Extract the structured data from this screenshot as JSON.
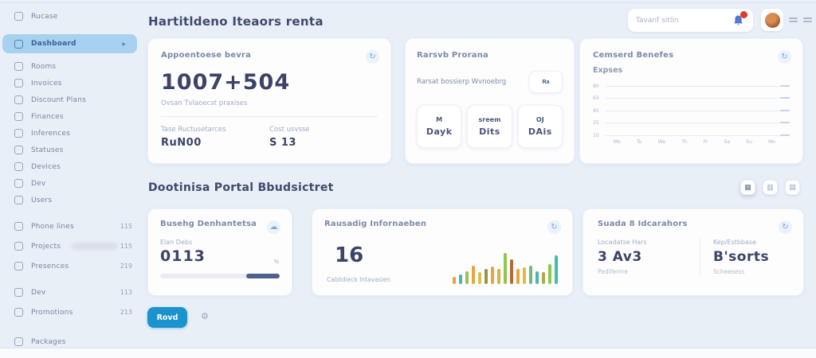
{
  "app": {
    "title": "Hartitldeno Iteaors renta"
  },
  "header": {
    "search": {
      "placeholder": "Tavanf sitlin"
    },
    "bell_color": "#4f79cc",
    "notification_dot_color": "#df3b2e"
  },
  "sidebar": {
    "items": [
      {
        "label": "Rucase",
        "active": false
      },
      {
        "label": "Dashboard",
        "active": true,
        "gap": 12
      },
      {
        "label": "Rooms",
        "active": false,
        "gap": 6
      },
      {
        "label": "Invoices",
        "active": false
      },
      {
        "label": "Discount Plans",
        "active": false
      },
      {
        "label": "Finances",
        "active": false
      },
      {
        "label": "Inferences",
        "active": false
      },
      {
        "label": "Statuses",
        "active": false
      },
      {
        "label": "Devices",
        "active": false
      },
      {
        "label": "Dev",
        "active": false
      },
      {
        "label": "Users",
        "active": false
      },
      {
        "label": "Phone lines",
        "badge": "115",
        "gap": 12
      },
      {
        "label": "Projects",
        "badge": "115",
        "blur_pill": true,
        "gap": 4
      },
      {
        "label": "Presences",
        "badge": "219",
        "gap": 4
      },
      {
        "label": "Dev",
        "badge": "113",
        "gap": 12
      },
      {
        "label": "Promotions",
        "badge": "213",
        "gap": 4
      },
      {
        "label": "Packages",
        "gap": 16
      }
    ]
  },
  "cards": {
    "stats": {
      "title": "Appoentoese bevra",
      "big_value": "1007+504",
      "subtitle": "Ovsan Tvlaoecst praxises",
      "metrics": [
        {
          "label": "Tase Ructusetarces",
          "value": "RuN00"
        },
        {
          "label": "Cost usvsse",
          "value": "S 13"
        }
      ]
    },
    "programs": {
      "title": "Rarsvb Prorana",
      "row_text": "Rarsat bossierp Wvnoebrg",
      "row_button_label": "Ra",
      "tiles": [
        {
          "top": "M",
          "bottom": "Dayk"
        },
        {
          "top": "sreem",
          "bottom": "Dits"
        },
        {
          "top": "OJ",
          "bottom": "DAis"
        }
      ]
    },
    "benefits": {
      "title": "Cemserd Benefes",
      "subtitle": "Expses",
      "chart_data": {
        "type": "line",
        "title": "Cemserd Benefes",
        "series": [],
        "note": "empty plot area - gridlines only, no data line visible",
        "y_ticks": [
          "80",
          "63",
          "45",
          "25",
          "10"
        ],
        "x_ticks": [
          "Mo",
          "Tu",
          "We",
          "Th",
          "Fr",
          "Sa",
          "Su",
          "Mo"
        ],
        "grid": true
      }
    }
  },
  "section": {
    "title": "Dootinisa Portal Bbudsictret",
    "actions": [
      {
        "name": "grid-view",
        "glyph": "▦"
      },
      {
        "name": "columns-view",
        "glyph": "▥"
      },
      {
        "name": "rows-view",
        "glyph": "▤"
      }
    ]
  },
  "bottom_cards": {
    "booking": {
      "title": "Busehg Denhantetsa",
      "label": "Elan Debs",
      "value": "0113",
      "percent_suffix": "%",
      "progress": {
        "fill_percent": 28,
        "align": "right",
        "fill_color": "#4c5f8d"
      }
    },
    "activity": {
      "title": "Rausadig Infornaeben",
      "big_value": "16",
      "subtitle": "Cablidieck Intavasien",
      "chart_data": {
        "type": "bar",
        "values": [
          9,
          12,
          16,
          23,
          15,
          19,
          22,
          19,
          39,
          31,
          19,
          21,
          23,
          16,
          15,
          25,
          36
        ],
        "max": 48,
        "colors": [
          "#e8a43f",
          "#4fb3a9",
          "#97c25c",
          "#e8a43f",
          "#d8bf4e",
          "#9a9440",
          "#e8a43f",
          "#d8b13f",
          "#8fc74f",
          "#b06a38",
          "#e8a43f",
          "#e0bb45",
          "#6fbc7a",
          "#52b3a8",
          "#b0a946",
          "#8fc74f",
          "#3fbfae"
        ]
      }
    },
    "summary": {
      "title": "Suada 8 Idcarahors",
      "columns": [
        {
          "label": "Locadatse Hars",
          "value": "3 Av3",
          "sub": "Pediferme"
        },
        {
          "label": "Kep/Estbbase",
          "value": "B'sorts",
          "sub": "Scheesess"
        }
      ]
    }
  },
  "footer": {
    "button_label": "Rovd"
  },
  "icons": {
    "refresh": "↻",
    "cloud": "☁",
    "gear": "⚙",
    "chevron": "▶"
  },
  "colors": {
    "accent_blue": "#1a93cf",
    "active_item_bg": "#a6d1ef",
    "card_bg": "#fdfdfe",
    "page_bg": "#e9eff7",
    "dark_text": "#3b4466",
    "muted_text": "#a0abc1"
  }
}
